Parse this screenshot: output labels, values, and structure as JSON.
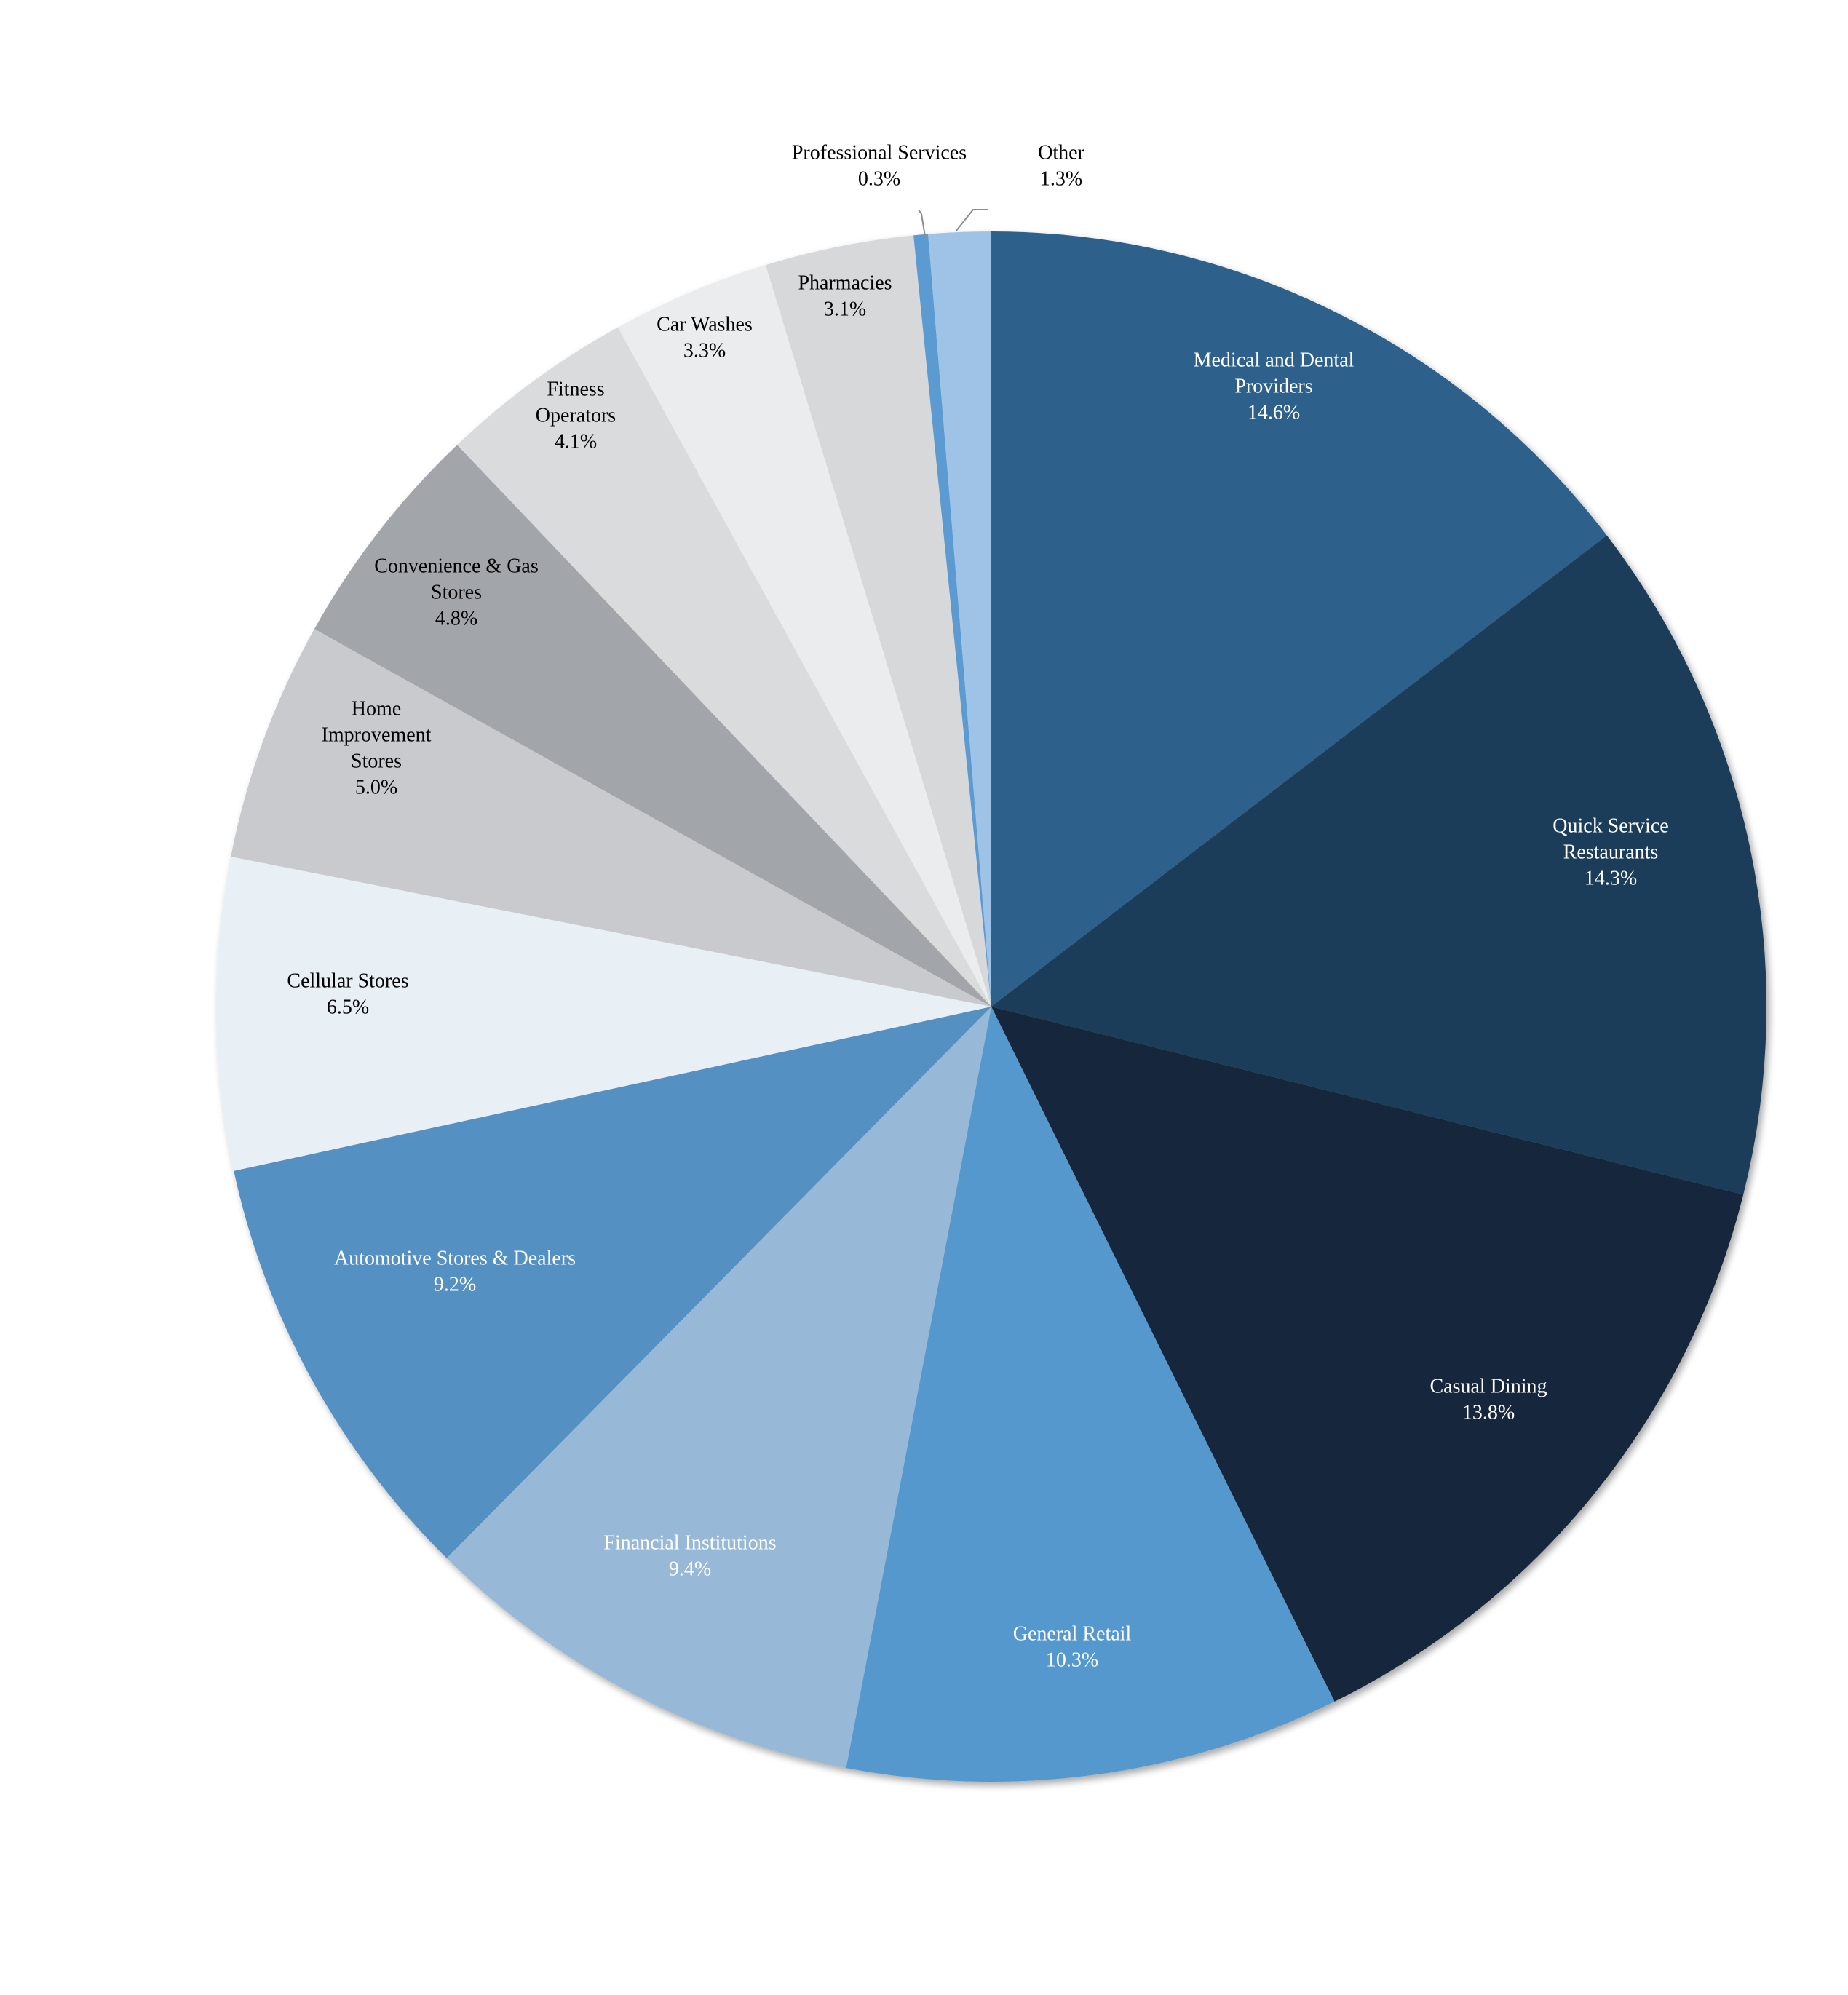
{
  "chart_data": {
    "type": "pie",
    "title": "",
    "start_angle_deg": 0,
    "direction": "clockwise",
    "slices": [
      {
        "name": "Medical and Dental Providers",
        "label_lines": [
          "Medical and Dental",
          "Providers"
        ],
        "value": 14.6,
        "value_label": "14.6%",
        "color": "#2e618c",
        "label_color": "#ffffff"
      },
      {
        "name": "Quick Service Restaurants",
        "label_lines": [
          "Quick Service",
          "Restaurants"
        ],
        "value": 14.3,
        "value_label": "14.3%",
        "color": "#1d3c5a",
        "label_color": "#ffffff"
      },
      {
        "name": "Casual Dining",
        "label_lines": [
          "Casual Dining"
        ],
        "value": 13.8,
        "value_label": "13.8%",
        "color": "#14273c",
        "label_color": "#ffffff"
      },
      {
        "name": "General Retail",
        "label_lines": [
          "General Retail"
        ],
        "value": 10.3,
        "value_label": "10.3%",
        "color": "#5598cd",
        "label_color": "#ffffff"
      },
      {
        "name": "Financial Institutions",
        "label_lines": [
          "Financial Institutions"
        ],
        "value": 9.4,
        "value_label": "9.4%",
        "color": "#97b9d7",
        "label_color": "#ffffff"
      },
      {
        "name": "Automotive Stores & Dealers",
        "label_lines": [
          "Automotive Stores & Dealers"
        ],
        "value": 9.2,
        "value_label": "9.2%",
        "color": "#5590c3",
        "label_color": "#ffffff"
      },
      {
        "name": "Cellular Stores",
        "label_lines": [
          "Cellular Stores"
        ],
        "value": 6.5,
        "value_label": "6.5%",
        "color": "#e8eff5",
        "label_color": "#000000"
      },
      {
        "name": "Home Improvement Stores",
        "label_lines": [
          "Home",
          "Improvement",
          "Stores"
        ],
        "value": 5.0,
        "value_label": "5.0%",
        "color": "#c8cacd",
        "label_color": "#000000"
      },
      {
        "name": "Convenience & Gas Stores",
        "label_lines": [
          "Convenience & Gas",
          "Stores"
        ],
        "value": 4.8,
        "value_label": "4.8%",
        "color": "#a2a6ab",
        "label_color": "#000000"
      },
      {
        "name": "Fitness Operators",
        "label_lines": [
          "Fitness",
          "Operators"
        ],
        "value": 4.1,
        "value_label": "4.1%",
        "color": "#dadbdd",
        "label_color": "#000000"
      },
      {
        "name": "Car Washes",
        "label_lines": [
          "Car Washes"
        ],
        "value": 3.3,
        "value_label": "3.3%",
        "color": "#ebecee",
        "label_color": "#000000"
      },
      {
        "name": "Pharmacies",
        "label_lines": [
          "Pharmacies"
        ],
        "value": 3.1,
        "value_label": "3.1%",
        "color": "#d7d8d9",
        "label_color": "#000000"
      },
      {
        "name": "Professional Services",
        "label_lines": [
          "Professional Services"
        ],
        "value": 0.3,
        "value_label": "0.3%",
        "color": "#5b9bd1",
        "label_color": "#000000"
      },
      {
        "name": "Other",
        "label_lines": [
          "Other"
        ],
        "value": 1.3,
        "value_label": "1.3%",
        "color": "#9fc3e6",
        "label_color": "#000000"
      }
    ]
  }
}
